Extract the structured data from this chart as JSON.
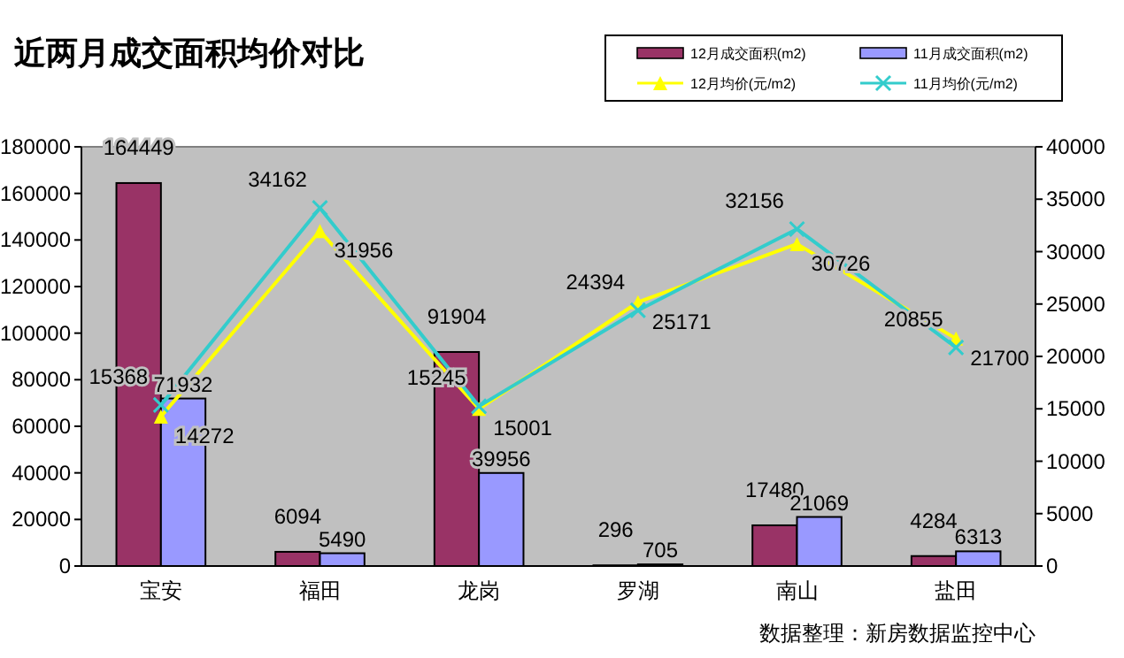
{
  "chart_data": {
    "type": "bar",
    "title": "近两月成交面积均价对比",
    "categories": [
      "宝安",
      "福田",
      "龙岗",
      "罗湖",
      "南山",
      "盐田"
    ],
    "series": [
      {
        "name": "12月成交面积(m2)",
        "color": "#993366",
        "values": [
          164449,
          6094,
          91904,
          296,
          17480,
          4284
        ]
      },
      {
        "name": "11月成交面积(m2)",
        "color": "#9999ff",
        "values": [
          71932,
          5490,
          39956,
          705,
          21069,
          6313
        ]
      },
      {
        "name": "12月均价(元/m2)",
        "type": "line",
        "axis": "y2",
        "color": "#ffff00",
        "marker": "triangle",
        "values": [
          14272,
          31956,
          15001,
          25171,
          30726,
          21700
        ]
      },
      {
        "name": "11月均价(元/m2)",
        "type": "line",
        "axis": "y2",
        "color": "#33cccc",
        "marker": "cross",
        "values": [
          15368,
          34162,
          15245,
          24394,
          32156,
          20855
        ]
      }
    ],
    "ylim": [
      0,
      180000
    ],
    "yticks": [
      0,
      20000,
      40000,
      60000,
      80000,
      100000,
      120000,
      140000,
      160000,
      180000
    ],
    "y2lim": [
      0,
      40000
    ],
    "y2ticks": [
      0,
      5000,
      10000,
      15000,
      20000,
      25000,
      30000,
      35000,
      40000
    ],
    "data_labels": true,
    "legend": "top right",
    "grid": false,
    "annotations": [
      "数据整理：新房数据监控中心"
    ]
  }
}
